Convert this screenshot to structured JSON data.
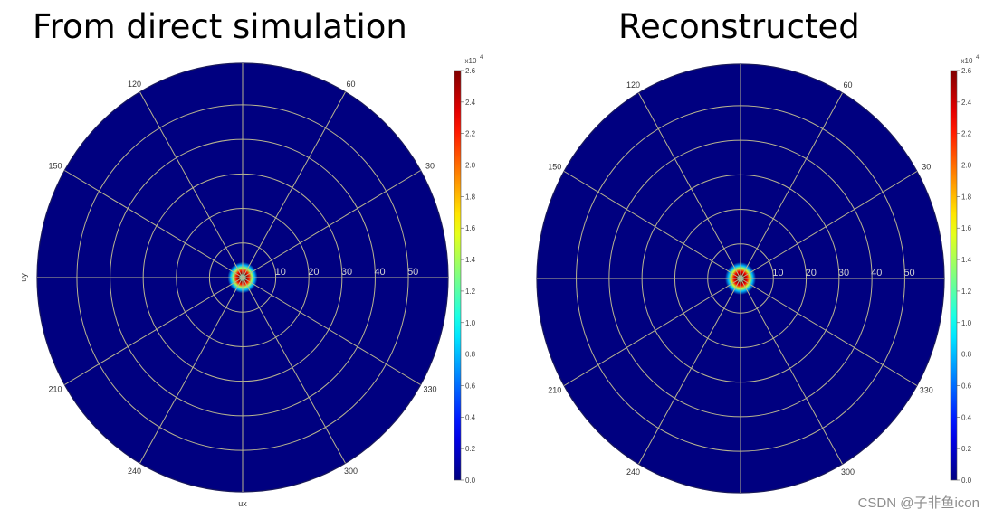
{
  "titles": {
    "left": "From direct simulation",
    "right": "Reconstructed"
  },
  "watermark": "CSDN @子非鱼icon",
  "chart_data": [
    {
      "type": "heatmap",
      "projection": "polar",
      "title": "From direct simulation",
      "xlabel": "ux",
      "ylabel": "uy",
      "radial_ticks": [
        10,
        20,
        30,
        40,
        50
      ],
      "radial_range": [
        0,
        62
      ],
      "angular_ticks": [
        30,
        60,
        120,
        150,
        210,
        240,
        300,
        330
      ],
      "grid": true,
      "colormap": "jet",
      "colorbar": {
        "exponent_label": "x10",
        "exponent": "4",
        "range": [
          0,
          2.6
        ],
        "ticks": [
          0.0,
          0.2,
          0.4,
          0.6,
          0.8,
          1.0,
          1.2,
          1.4,
          1.6,
          1.8,
          2.0,
          2.2,
          2.4,
          2.6
        ]
      },
      "background_value": 0,
      "hotspot": {
        "center": [
          0,
          0
        ],
        "peak_value": 2.6,
        "peak_radius": 1.2,
        "outer_radius": 4.5,
        "profile": [
          {
            "r": 0.0,
            "v": 0.9
          },
          {
            "r": 0.6,
            "v": 1.0
          },
          {
            "r": 1.2,
            "v": 2.6
          },
          {
            "r": 2.0,
            "v": 2.2
          },
          {
            "r": 2.8,
            "v": 1.4
          },
          {
            "r": 3.6,
            "v": 0.8
          },
          {
            "r": 4.5,
            "v": 0.0
          }
        ]
      }
    },
    {
      "type": "heatmap",
      "projection": "polar",
      "title": "Reconstructed",
      "xlabel": "",
      "ylabel": "",
      "radial_ticks": [
        10,
        20,
        30,
        40,
        50
      ],
      "radial_range": [
        0,
        62
      ],
      "angular_ticks": [
        30,
        60,
        120,
        150,
        210,
        240,
        300,
        330
      ],
      "grid": true,
      "colormap": "jet",
      "colorbar": {
        "exponent_label": "x10",
        "exponent": "4",
        "range": [
          0,
          2.6
        ],
        "ticks": [
          0.0,
          0.2,
          0.4,
          0.6,
          0.8,
          1.0,
          1.2,
          1.4,
          1.6,
          1.8,
          2.0,
          2.2,
          2.4,
          2.6
        ]
      },
      "background_value": 0,
      "hotspot": {
        "center": [
          0,
          0
        ],
        "peak_value": 2.6,
        "peak_radius": 1.2,
        "outer_radius": 4.7,
        "profile": [
          {
            "r": 0.0,
            "v": 0.9
          },
          {
            "r": 0.6,
            "v": 1.0
          },
          {
            "r": 1.2,
            "v": 2.6
          },
          {
            "r": 2.0,
            "v": 2.3
          },
          {
            "r": 2.9,
            "v": 1.5
          },
          {
            "r": 3.7,
            "v": 0.8
          },
          {
            "r": 4.7,
            "v": 0.0
          }
        ]
      }
    }
  ]
}
